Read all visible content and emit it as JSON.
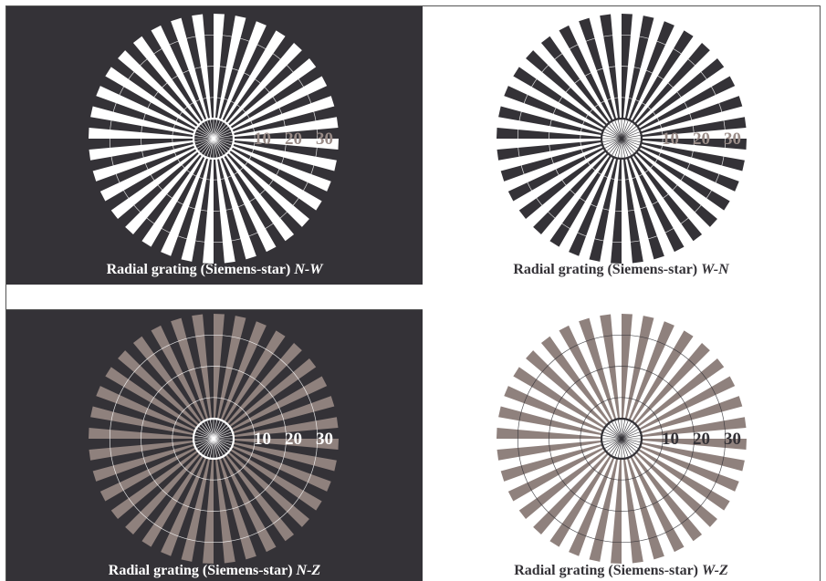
{
  "colors": {
    "dark": "#343237",
    "white": "#ffffff",
    "taupe": "#8f817d",
    "label_muted": "#9a8c88"
  },
  "panels": [
    {
      "id": "n-w",
      "caption": "Radial grating (Siemens-star)",
      "caption_suffix": "N-W",
      "scale_labels": [
        "10",
        "20",
        "30"
      ]
    },
    {
      "id": "w-n",
      "caption": "Radial grating (Siemens-star)",
      "caption_suffix": "W-N",
      "scale_labels": [
        "10",
        "20",
        "30"
      ]
    },
    {
      "id": "n-z",
      "caption": "Radial grating (Siemens-star)",
      "caption_suffix": "N-Z",
      "scale_labels": [
        "10",
        "20",
        "30"
      ]
    },
    {
      "id": "w-z",
      "caption": "Radial grating (Siemens-star)",
      "caption_suffix": "W-Z",
      "scale_labels": [
        "10",
        "20",
        "30"
      ]
    }
  ]
}
